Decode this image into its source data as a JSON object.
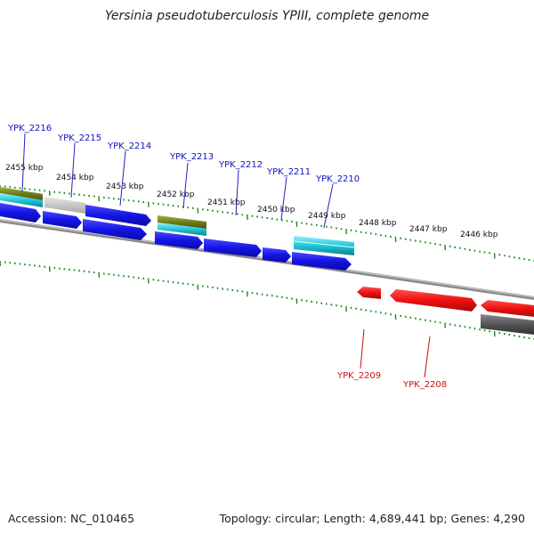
{
  "title": "Yersinia pseudotuberculosis YPIII, complete genome",
  "footer": {
    "accession": "Accession: NC_010465",
    "topology": "Topology: circular; Length: 4,689,441 bp; Genes: 4,290"
  },
  "kbp_labels": [
    "2455 kbp",
    "2454 kbp",
    "2453 kbp",
    "2452 kbp",
    "2451 kbp",
    "2450 kbp",
    "2449 kbp",
    "2448 kbp",
    "2447 kbp",
    "2446 kbp"
  ],
  "forward_genes": [
    "YPK_2216",
    "YPK_2215",
    "YPK_2214",
    "YPK_2213",
    "YPK_2212",
    "YPK_2211",
    "YPK_2210"
  ],
  "reverse_genes": [
    "YPK_2209",
    "YPK_2208"
  ],
  "colors": {
    "forward_gene": "#1a1aee",
    "reverse_gene": "#ee1111",
    "cds_cyan": "#22c8d8",
    "olive": "#7a8a20",
    "gray_feature": "#c8c8c8",
    "dark_feature": "#505050",
    "backbone": "#888888",
    "ticks": "#1a8a1a",
    "label_blue": "#1010c0",
    "label_red": "#d01010"
  }
}
